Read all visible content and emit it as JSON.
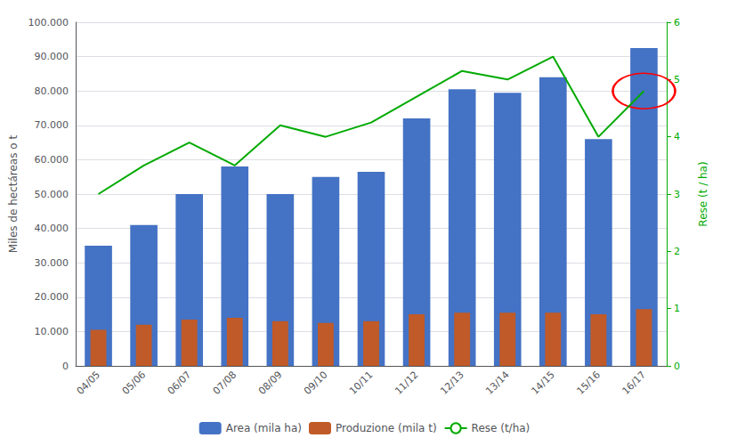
{
  "chart_data": {
    "type": "bar",
    "categories": [
      "04/05",
      "05/06",
      "06/07",
      "07/08",
      "08/09",
      "09/10",
      "10/11",
      "11/12",
      "12/13",
      "13/14",
      "14/15",
      "15/16",
      "16/17"
    ],
    "series": [
      {
        "name": "Area (mila ha)",
        "type": "bar",
        "color": "#4472C4",
        "values": [
          35000,
          41000,
          50000,
          58000,
          50000,
          55000,
          56500,
          72000,
          80500,
          79500,
          84000,
          66000,
          92500
        ]
      },
      {
        "name": "Produzione (mila t)",
        "type": "bar",
        "color": "#C05A28",
        "values": [
          10500,
          12000,
          13500,
          14000,
          13000,
          12500,
          13000,
          15000,
          15500,
          15500,
          15500,
          15000,
          16500
        ]
      },
      {
        "name": "Rese (t/ha)",
        "type": "line",
        "axis": "y2",
        "color": "#00AA00",
        "values": [
          3.0,
          3.5,
          3.9,
          3.5,
          4.2,
          4.0,
          4.25,
          4.7,
          5.15,
          5.0,
          5.4,
          4.0,
          4.8
        ]
      }
    ],
    "ylabel": "Miles de hectáreas o t",
    "y2label": "Rese (t / ha)",
    "ylim": [
      0,
      100000
    ],
    "yticks": [
      0,
      {
        "value": 10000,
        "label": "10.000"
      },
      {
        "value": 20000,
        "label": "20.000"
      },
      {
        "value": 30000,
        "label": "30.000"
      },
      {
        "value": 40000,
        "label": "40.000"
      },
      {
        "value": 50000,
        "label": "50.000"
      },
      {
        "value": 60000,
        "label": "60.000"
      },
      {
        "value": 70000,
        "label": "70.000"
      },
      {
        "value": 80000,
        "label": "80.000"
      },
      {
        "value": 90000,
        "label": "90.000"
      },
      {
        "value": 100000,
        "label": "100.000"
      }
    ],
    "y2lim": [
      0,
      6
    ],
    "y2ticks": [
      0,
      1,
      2,
      3,
      4,
      5,
      6
    ],
    "grid": true,
    "legend": "bottom",
    "annotations": [
      {
        "shape": "ellipse",
        "category": "16/17",
        "series": "Rese (t/ha)",
        "color": "red"
      }
    ]
  }
}
